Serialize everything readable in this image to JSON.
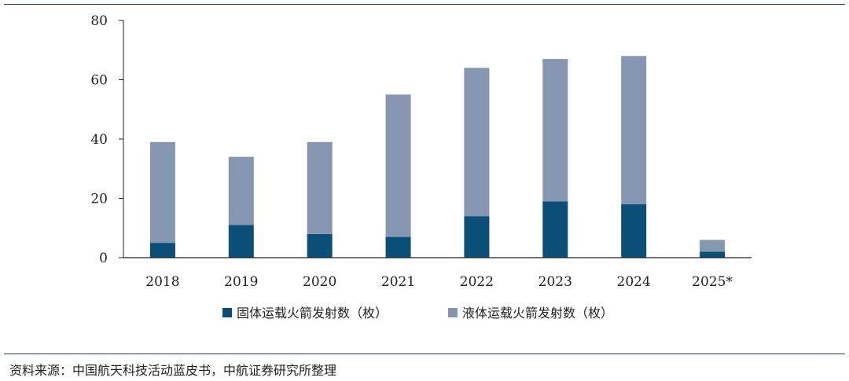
{
  "chart_data": {
    "type": "bar",
    "stacked": true,
    "title": "",
    "xlabel": "",
    "ylabel": "",
    "categories": [
      "2018",
      "2019",
      "2020",
      "2021",
      "2022",
      "2023",
      "2024",
      "2025*"
    ],
    "ylim": [
      0,
      80
    ],
    "yticks": [
      0,
      20,
      40,
      60,
      80
    ],
    "grid": false,
    "legend_position": "bottom",
    "series": [
      {
        "name": "固体运载火箭发射数（枚）",
        "color": "#0a4f78",
        "values": [
          5,
          11,
          8,
          7,
          14,
          19,
          18,
          2
        ]
      },
      {
        "name": "液体运载火箭发射数（枚）",
        "color": "#8597b0",
        "values": [
          34,
          23,
          31,
          48,
          50,
          48,
          50,
          4
        ]
      }
    ]
  },
  "source": "资料来源：中国航天科技活动蓝皮书，中航证券研究所整理"
}
